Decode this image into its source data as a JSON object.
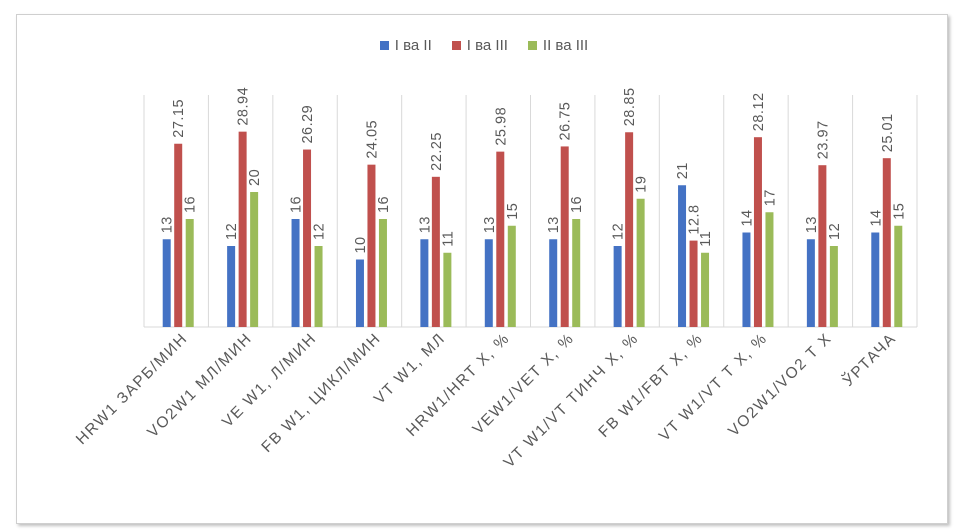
{
  "chart_data": {
    "type": "bar",
    "categories": [
      "HRW1 ЗАРБ/МИН",
      "VO2W1 МЛ/МИН",
      "VE W1, Л/МИН",
      "FB W1, ЦИКЛ/МИН",
      "VT W1, МЛ",
      "HRW1/HRT Х, %",
      "VEW1/VET Х, %",
      "VT W1/VT ТИНЧ Х, %",
      "FB W1/FBT Х, %",
      "VT W1/VT Т Х, %",
      "VO2W1/VO2 Т Х",
      "ЎРТАЧА"
    ],
    "series": [
      {
        "name": "I ва II",
        "color": "#4472C4",
        "values": [
          13,
          12,
          16,
          10,
          13,
          13,
          13,
          12,
          21,
          14,
          13,
          14
        ],
        "labels": [
          "13",
          "12",
          "16",
          "10",
          "13",
          "13",
          "13",
          "12",
          "21",
          "14",
          "13",
          "14"
        ]
      },
      {
        "name": "I ва III",
        "color": "#C0504D",
        "values": [
          27.15,
          28.94,
          26.29,
          24.05,
          22.25,
          25.98,
          26.75,
          28.85,
          12.8,
          28.12,
          23.97,
          25.01
        ],
        "labels": [
          "27.15",
          "28.94",
          "26.29",
          "24.05",
          "22.25",
          "25.98",
          "26.75",
          "28.85",
          "12.8",
          "28.12",
          "23.97",
          "25.01"
        ]
      },
      {
        "name": "II ва III",
        "color": "#9BBB59",
        "values": [
          16,
          20,
          12,
          16,
          11,
          15,
          16,
          19,
          11,
          17,
          12,
          15
        ],
        "labels": [
          "16",
          "20",
          "12",
          "16",
          "11",
          "15",
          "16",
          "19",
          "11",
          "17",
          "12",
          "15"
        ]
      }
    ],
    "ylim": [
      0,
      35
    ],
    "grid": "vertical category separators",
    "legend": "top-center"
  }
}
